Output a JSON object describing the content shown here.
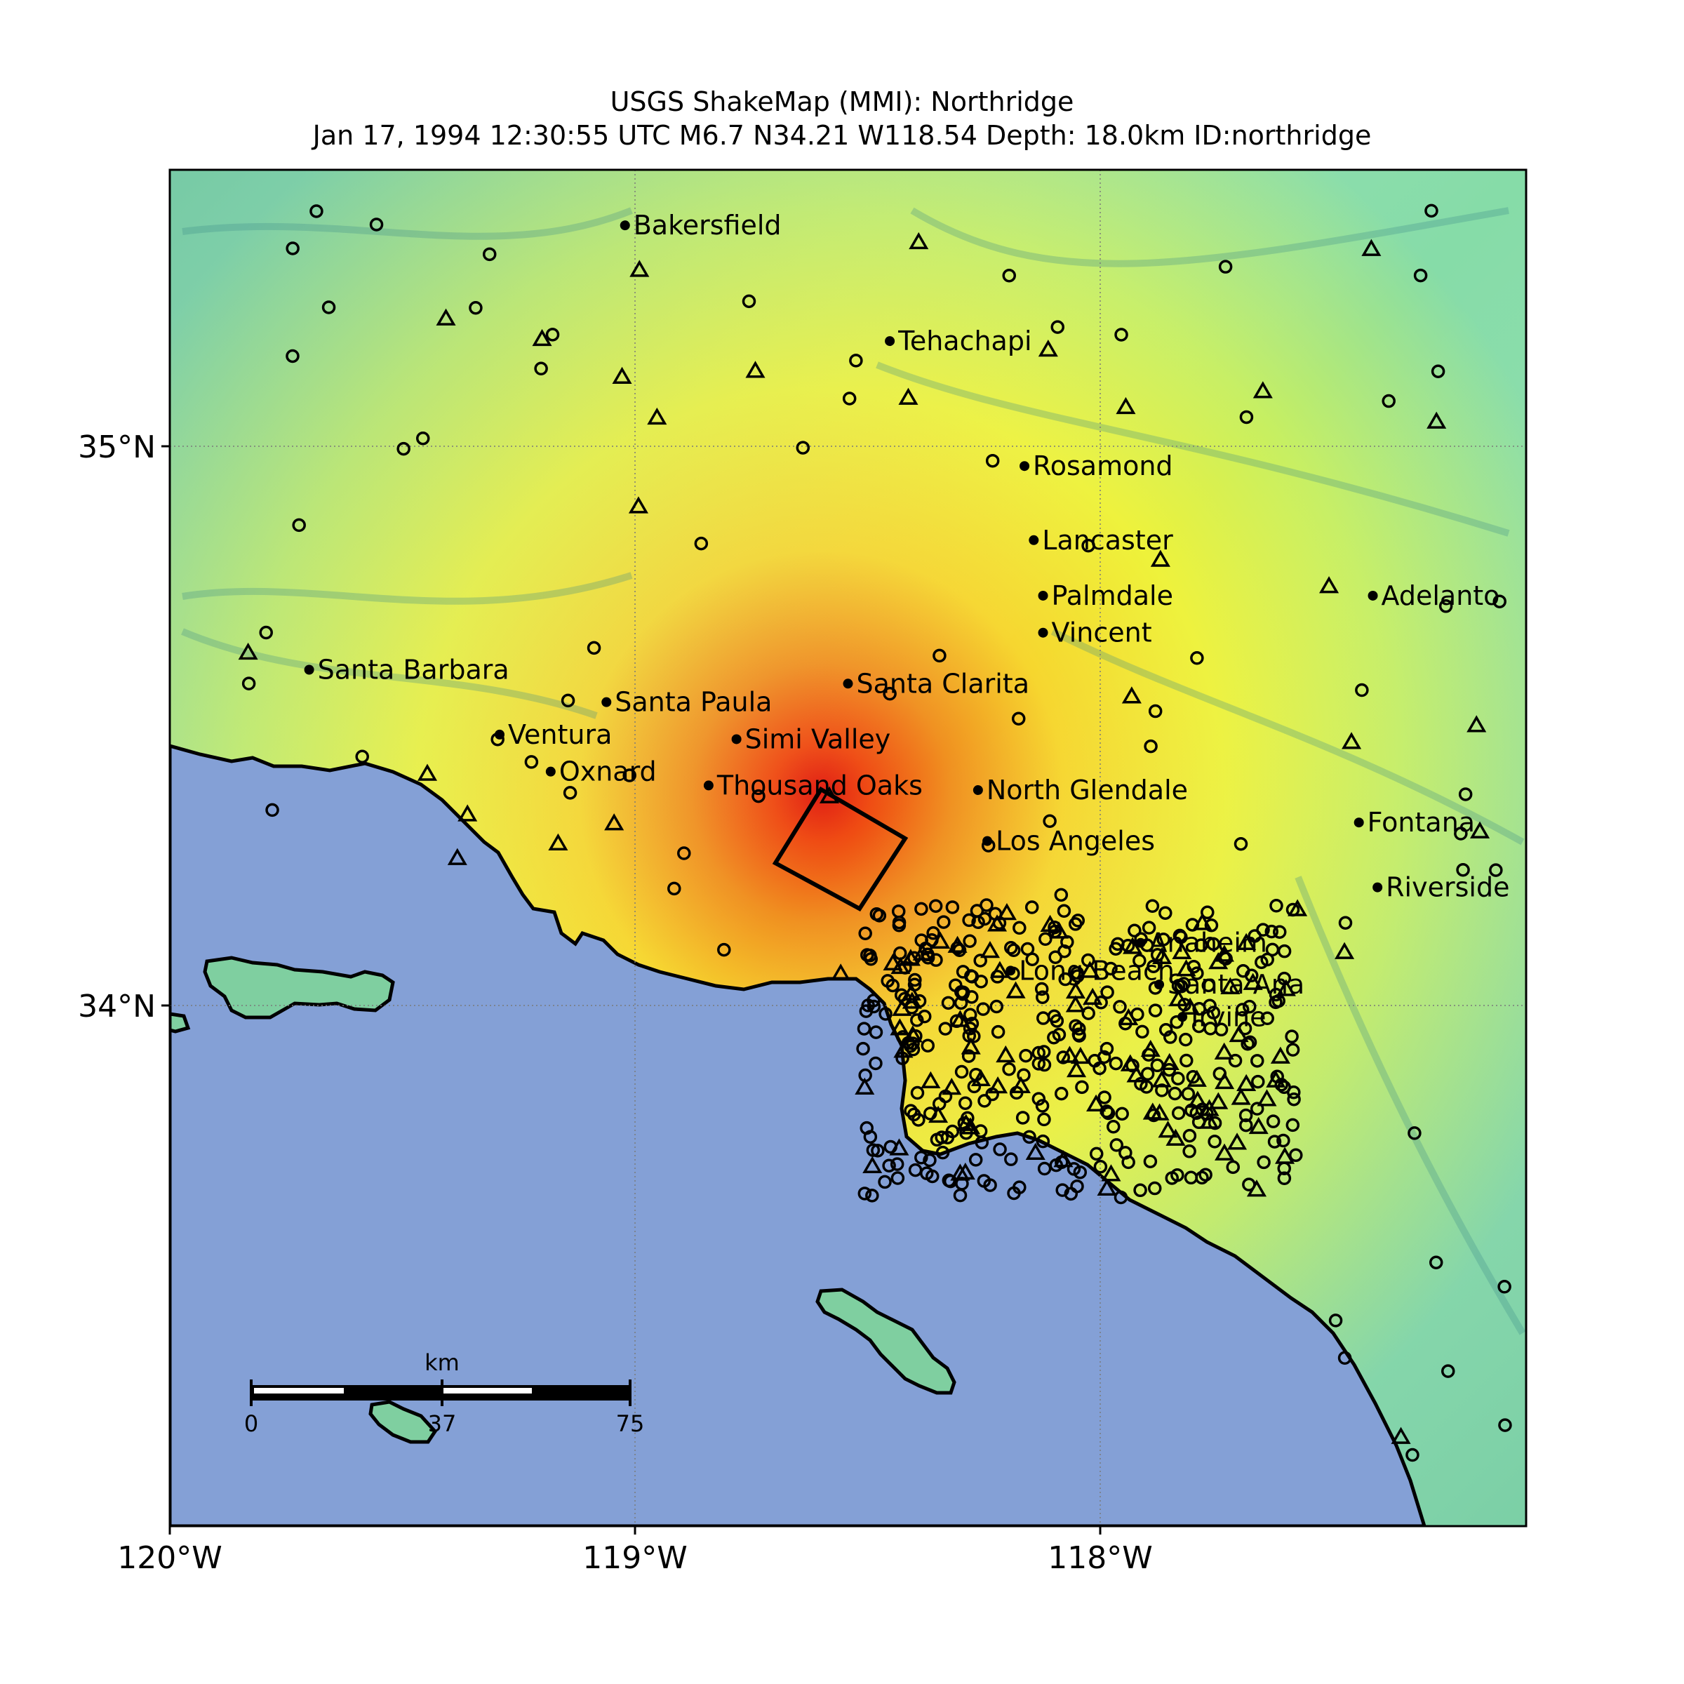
{
  "title": {
    "line1": "USGS ShakeMap (MMI): Northridge",
    "line2": "Jan 17, 1994 12:30:55 UTC M6.7 N34.21 W118.54 Depth: 18.0km ID:northridge"
  },
  "axes": {
    "x_ticks": [
      {
        "label": "120°W",
        "lon": -120.0
      },
      {
        "label": "119°W",
        "lon": -119.0
      },
      {
        "label": "118°W",
        "lon": -118.0
      }
    ],
    "y_ticks": [
      {
        "label": "35°N",
        "lat": 35.0
      },
      {
        "label": "34°N",
        "lat": 34.0
      }
    ],
    "lon_range": [
      -120.0,
      -117.08
    ],
    "lat_range": [
      32.57,
      35.5
    ],
    "grid": true
  },
  "epicenter": {
    "lat": 34.21,
    "lon": -118.54
  },
  "cities": [
    {
      "name": "Bakersfield",
      "lat": 35.38,
      "lon": -119.02
    },
    {
      "name": "Tehachapi",
      "lat": 35.13,
      "lon": -118.45
    },
    {
      "name": "Rosamond",
      "lat": 34.86,
      "lon": -118.16
    },
    {
      "name": "Lancaster",
      "lat": 34.7,
      "lon": -118.14
    },
    {
      "name": "Palmdale",
      "lat": 34.58,
      "lon": -118.12
    },
    {
      "name": "Vincent",
      "lat": 34.5,
      "lon": -118.12
    },
    {
      "name": "Adelanto",
      "lat": 34.58,
      "lon": -117.41
    },
    {
      "name": "Santa Barbara",
      "lat": 34.42,
      "lon": -119.7
    },
    {
      "name": "Santa Clarita",
      "lat": 34.39,
      "lon": -118.54
    },
    {
      "name": "Santa Paula",
      "lat": 34.35,
      "lon": -119.06
    },
    {
      "name": "Ventura",
      "lat": 34.28,
      "lon": -119.29
    },
    {
      "name": "Simi Valley",
      "lat": 34.27,
      "lon": -118.78
    },
    {
      "name": "Oxnard",
      "lat": 34.2,
      "lon": -119.18
    },
    {
      "name": "Thousand Oaks",
      "lat": 34.17,
      "lon": -118.84
    },
    {
      "name": "North Glendale",
      "lat": 34.16,
      "lon": -118.26
    },
    {
      "name": "Los Angeles",
      "lat": 34.05,
      "lon": -118.24
    },
    {
      "name": "Fontana",
      "lat": 34.09,
      "lon": -117.44
    },
    {
      "name": "Riverside",
      "lat": 33.95,
      "lon": -117.4
    },
    {
      "name": "Anaheim",
      "lat": 33.83,
      "lon": -117.91
    },
    {
      "name": "Long Beach",
      "lat": 33.77,
      "lon": -118.19
    },
    {
      "name": "Santa Ana",
      "lat": 33.74,
      "lon": -117.87
    },
    {
      "name": "Irvine",
      "lat": 33.67,
      "lon": -117.82
    }
  ],
  "scale_bar": {
    "unit": "km",
    "labels": [
      "0",
      "37",
      "75"
    ]
  },
  "colors": {
    "water": "#84a0d6",
    "land_low": "#7fdcb8",
    "land_mid": "#c7f06a",
    "land_high": "#f6f23a",
    "shake_strong": "#f0a020",
    "shake_max": "#e02010"
  },
  "station_symbols": [
    "circle",
    "triangle"
  ]
}
